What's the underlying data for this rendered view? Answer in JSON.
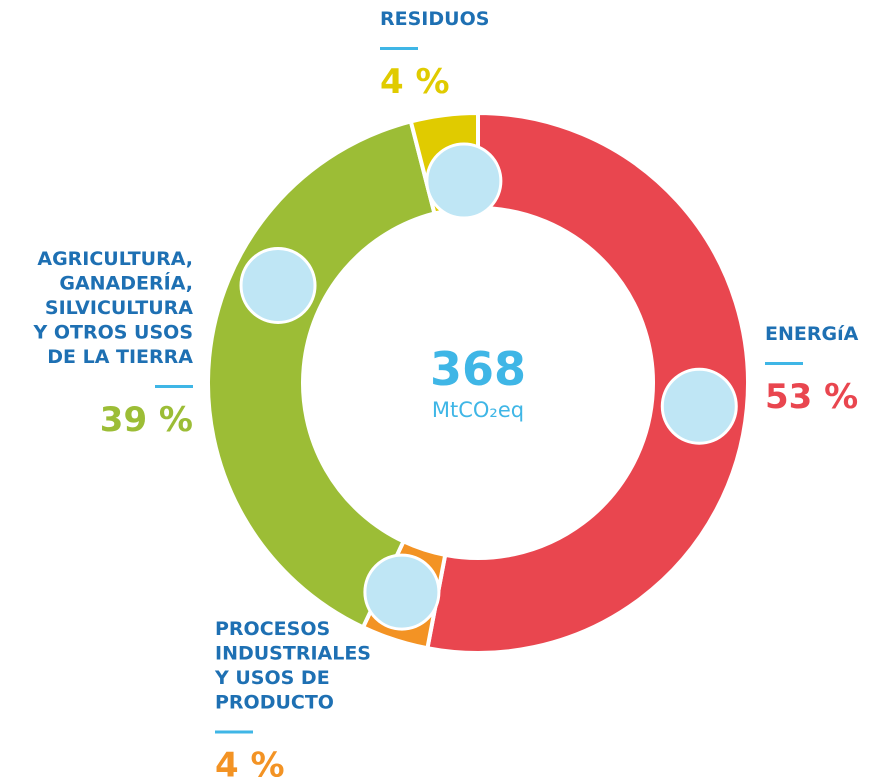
{
  "chart_data": {
    "type": "pie",
    "categories": [
      "ENERGíA",
      "PROCESOS\nINDUSTRIALES\nY USOS DE\nPRODUCTO",
      "AGRICULTURA,\nGANADERÍA,\nSILVICULTURA\nY OTROS USOS\nDE LA TIERRA",
      "RESIDUOS"
    ],
    "values": [
      53,
      4,
      39,
      4
    ],
    "value_labels": [
      "53 %",
      "4 %",
      "39 %",
      "4 %"
    ],
    "colors": [
      "#e9464f",
      "#f39324",
      "#9cbd36",
      "#e0cb00"
    ],
    "center_value": "368",
    "center_unit": "MtCO₂eq"
  }
}
